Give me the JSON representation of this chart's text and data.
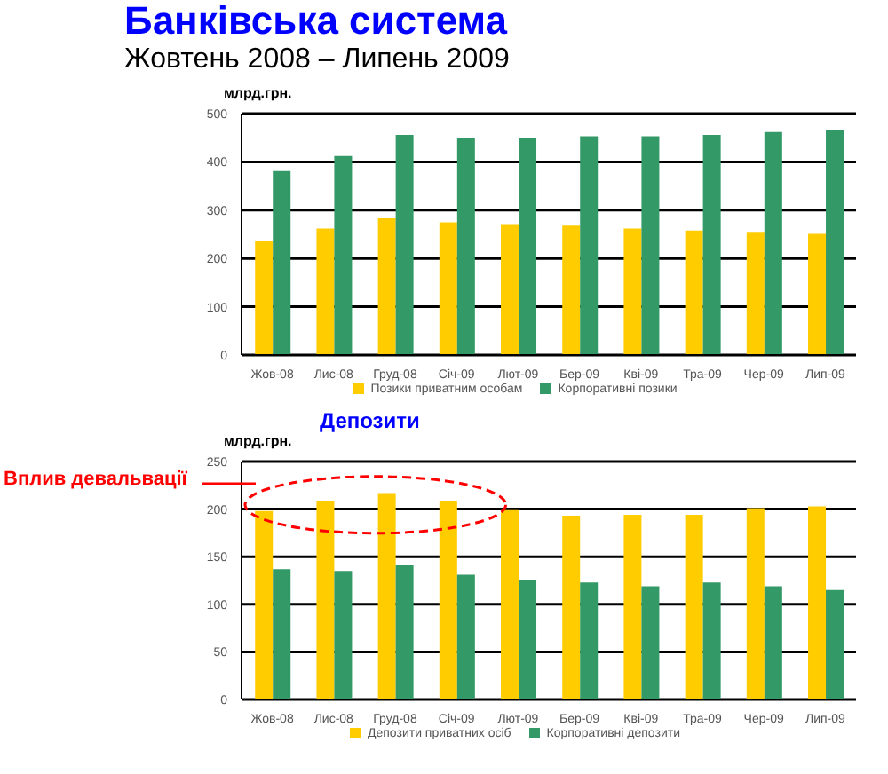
{
  "chart_data": [
    {
      "type": "bar",
      "title": "Банківська система",
      "subtitle": "Жовтень 2008 – Липень 2009",
      "ylabel": "млрд.грн.",
      "categories": [
        "Жов-08",
        "Лис-08",
        "Груд-08",
        "Січ-09",
        "Лют-09",
        "Бер-09",
        "Кві-09",
        "Тра-09",
        "Чер-09",
        "Лип-09"
      ],
      "series": [
        {
          "name": "Позики приватним особам",
          "color": "#ffcc00",
          "values": [
            237,
            262,
            283,
            275,
            271,
            268,
            262,
            258,
            255,
            251
          ]
        },
        {
          "name": "Корпоративні позики",
          "color": "#339966",
          "values": [
            381,
            412,
            456,
            450,
            449,
            453,
            453,
            456,
            462,
            466
          ]
        }
      ],
      "ylim": [
        0,
        500
      ],
      "yticks": [
        0,
        100,
        200,
        300,
        400,
        500
      ],
      "grid": "y",
      "legend": "bottom"
    },
    {
      "type": "bar",
      "title": "Депозити",
      "ylabel": "млрд.грн.",
      "annotations": [
        "Вплив девальвації"
      ],
      "categories": [
        "Жов-08",
        "Лис-08",
        "Груд-08",
        "Січ-09",
        "Лют-09",
        "Бер-09",
        "Кві-09",
        "Тра-09",
        "Чер-09",
        "Лип-09"
      ],
      "series": [
        {
          "name": "Депозити приватних осіб",
          "color": "#ffcc00",
          "values": [
            198,
            209,
            217,
            209,
            199,
            193,
            194,
            194,
            201,
            203
          ]
        },
        {
          "name": "Корпоративні депозити",
          "color": "#339966",
          "values": [
            137,
            135,
            141,
            131,
            125,
            123,
            119,
            123,
            119,
            115
          ]
        }
      ],
      "ylim": [
        0,
        250
      ],
      "yticks": [
        0,
        50,
        100,
        150,
        200,
        250
      ],
      "grid": "y",
      "legend": "bottom"
    }
  ]
}
